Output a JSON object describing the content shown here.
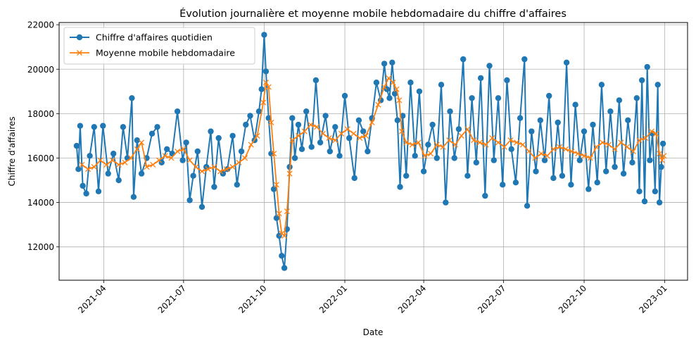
{
  "chart_data": {
    "type": "line",
    "title": "Évolution journalière et moyenne mobile hebdomadaire du chiffre d'affaires",
    "xlabel": "Date",
    "ylabel": "Chiffre d'affaires",
    "xlim": [
      "2021-02-09",
      "2023-01-27"
    ],
    "ylim": [
      10500,
      22100
    ],
    "x_ticks": [
      "2021-04",
      "2021-07",
      "2021-10",
      "2022-01",
      "2022-04",
      "2022-07",
      "2022-10",
      "2023-01"
    ],
    "y_ticks": [
      12000,
      14000,
      16000,
      18000,
      20000,
      22000
    ],
    "grid": true,
    "legend_position": "top-left",
    "series": [
      {
        "name": "Chiffre d'affaires quotidien",
        "color": "#1f77b4",
        "marker": "circle",
        "anchors": [
          [
            "2021-03-01",
            16550
          ],
          [
            "2021-03-03",
            15500
          ],
          [
            "2021-03-05",
            17450
          ],
          [
            "2021-03-08",
            14750
          ],
          [
            "2021-03-12",
            14400
          ],
          [
            "2021-03-16",
            16100
          ],
          [
            "2021-03-21",
            17400
          ],
          [
            "2021-03-26",
            14500
          ],
          [
            "2021-03-31",
            17450
          ],
          [
            "2021-04-06",
            15300
          ],
          [
            "2021-04-12",
            16200
          ],
          [
            "2021-04-18",
            15000
          ],
          [
            "2021-04-23",
            17400
          ],
          [
            "2021-04-28",
            16000
          ],
          [
            "2021-05-03",
            18700
          ],
          [
            "2021-05-05",
            14250
          ],
          [
            "2021-05-09",
            16800
          ],
          [
            "2021-05-14",
            15300
          ],
          [
            "2021-05-20",
            16000
          ],
          [
            "2021-05-26",
            17100
          ],
          [
            "2021-06-01",
            17400
          ],
          [
            "2021-06-06",
            15800
          ],
          [
            "2021-06-12",
            16400
          ],
          [
            "2021-06-18",
            16200
          ],
          [
            "2021-06-24",
            18100
          ],
          [
            "2021-06-30",
            15900
          ],
          [
            "2021-07-04",
            16700
          ],
          [
            "2021-07-08",
            14100
          ],
          [
            "2021-07-12",
            15200
          ],
          [
            "2021-07-17",
            16300
          ],
          [
            "2021-07-22",
            13800
          ],
          [
            "2021-07-27",
            15600
          ],
          [
            "2021-08-01",
            17200
          ],
          [
            "2021-08-05",
            14700
          ],
          [
            "2021-08-10",
            16900
          ],
          [
            "2021-08-15",
            15300
          ],
          [
            "2021-08-20",
            15500
          ],
          [
            "2021-08-26",
            17000
          ],
          [
            "2021-08-31",
            14800
          ],
          [
            "2021-09-05",
            16300
          ],
          [
            "2021-09-10",
            17500
          ],
          [
            "2021-09-15",
            17900
          ],
          [
            "2021-09-20",
            16800
          ],
          [
            "2021-09-25",
            18100
          ],
          [
            "2021-09-28",
            19100
          ],
          [
            "2021-10-01",
            21550
          ],
          [
            "2021-10-03",
            19900
          ],
          [
            "2021-10-06",
            17800
          ],
          [
            "2021-10-09",
            16200
          ],
          [
            "2021-10-12",
            14600
          ],
          [
            "2021-10-15",
            13300
          ],
          [
            "2021-10-18",
            12500
          ],
          [
            "2021-10-21",
            11600
          ],
          [
            "2021-10-24",
            11050
          ],
          [
            "2021-10-27",
            12800
          ],
          [
            "2021-10-30",
            15600
          ],
          [
            "2021-11-02",
            17800
          ],
          [
            "2021-11-05",
            16000
          ],
          [
            "2021-11-09",
            17500
          ],
          [
            "2021-11-13",
            16400
          ],
          [
            "2021-11-18",
            18100
          ],
          [
            "2021-11-24",
            16500
          ],
          [
            "2021-11-29",
            19500
          ],
          [
            "2021-12-04",
            16700
          ],
          [
            "2021-12-10",
            17900
          ],
          [
            "2021-12-15",
            16300
          ],
          [
            "2021-12-21",
            17400
          ],
          [
            "2021-12-26",
            16100
          ],
          [
            "2022-01-01",
            18800
          ],
          [
            "2022-01-06",
            16900
          ],
          [
            "2022-01-12",
            15100
          ],
          [
            "2022-01-17",
            17700
          ],
          [
            "2022-01-22",
            17200
          ],
          [
            "2022-01-27",
            16300
          ],
          [
            "2022-02-01",
            17800
          ],
          [
            "2022-02-06",
            19400
          ],
          [
            "2022-02-11",
            18600
          ],
          [
            "2022-02-15",
            20250
          ],
          [
            "2022-02-18",
            19100
          ],
          [
            "2022-02-21",
            18700
          ],
          [
            "2022-02-24",
            20300
          ],
          [
            "2022-02-27",
            18900
          ],
          [
            "2022-03-02",
            17700
          ],
          [
            "2022-03-05",
            14700
          ],
          [
            "2022-03-08",
            17900
          ],
          [
            "2022-03-12",
            15200
          ],
          [
            "2022-03-17",
            19400
          ],
          [
            "2022-03-22",
            16100
          ],
          [
            "2022-03-27",
            19000
          ],
          [
            "2022-04-01",
            15400
          ],
          [
            "2022-04-06",
            16600
          ],
          [
            "2022-04-11",
            17500
          ],
          [
            "2022-04-16",
            16000
          ],
          [
            "2022-04-21",
            19300
          ],
          [
            "2022-04-26",
            14000
          ],
          [
            "2022-05-01",
            18100
          ],
          [
            "2022-05-06",
            16000
          ],
          [
            "2022-05-11",
            17300
          ],
          [
            "2022-05-16",
            20450
          ],
          [
            "2022-05-21",
            15200
          ],
          [
            "2022-05-26",
            18700
          ],
          [
            "2022-05-31",
            15800
          ],
          [
            "2022-06-05",
            19600
          ],
          [
            "2022-06-10",
            14300
          ],
          [
            "2022-06-15",
            20150
          ],
          [
            "2022-06-20",
            15900
          ],
          [
            "2022-06-25",
            18700
          ],
          [
            "2022-06-30",
            14800
          ],
          [
            "2022-07-05",
            19500
          ],
          [
            "2022-07-10",
            16400
          ],
          [
            "2022-07-15",
            14900
          ],
          [
            "2022-07-20",
            17800
          ],
          [
            "2022-07-25",
            20450
          ],
          [
            "2022-07-28",
            13850
          ],
          [
            "2022-08-02",
            17200
          ],
          [
            "2022-08-07",
            15400
          ],
          [
            "2022-08-12",
            17700
          ],
          [
            "2022-08-17",
            15900
          ],
          [
            "2022-08-22",
            18800
          ],
          [
            "2022-08-27",
            15100
          ],
          [
            "2022-09-01",
            17600
          ],
          [
            "2022-09-06",
            15200
          ],
          [
            "2022-09-11",
            20300
          ],
          [
            "2022-09-16",
            14800
          ],
          [
            "2022-09-21",
            18400
          ],
          [
            "2022-09-26",
            15900
          ],
          [
            "2022-10-01",
            17200
          ],
          [
            "2022-10-06",
            14600
          ],
          [
            "2022-10-11",
            17500
          ],
          [
            "2022-10-16",
            14900
          ],
          [
            "2022-10-21",
            19300
          ],
          [
            "2022-10-26",
            15400
          ],
          [
            "2022-10-31",
            18100
          ],
          [
            "2022-11-05",
            15600
          ],
          [
            "2022-11-10",
            18600
          ],
          [
            "2022-11-15",
            15300
          ],
          [
            "2022-11-20",
            17700
          ],
          [
            "2022-11-25",
            15800
          ],
          [
            "2022-11-30",
            18700
          ],
          [
            "2022-12-03",
            14500
          ],
          [
            "2022-12-06",
            19500
          ],
          [
            "2022-12-09",
            14050
          ],
          [
            "2022-12-12",
            20100
          ],
          [
            "2022-12-15",
            15900
          ],
          [
            "2022-12-18",
            17100
          ],
          [
            "2022-12-21",
            14500
          ],
          [
            "2022-12-24",
            19300
          ],
          [
            "2022-12-26",
            14000
          ],
          [
            "2022-12-28",
            15600
          ],
          [
            "2022-12-30",
            16650
          ]
        ]
      },
      {
        "name": "Moyenne mobile hebdomadaire",
        "color": "#ff7f0e",
        "marker": "x",
        "anchors": [
          [
            "2021-03-07",
            15700
          ],
          [
            "2021-03-14",
            15500
          ],
          [
            "2021-03-21",
            15600
          ],
          [
            "2021-03-28",
            15900
          ],
          [
            "2021-04-04",
            15700
          ],
          [
            "2021-04-11",
            15900
          ],
          [
            "2021-04-18",
            15700
          ],
          [
            "2021-04-25",
            15800
          ],
          [
            "2021-05-02",
            16000
          ],
          [
            "2021-05-09",
            16400
          ],
          [
            "2021-05-14",
            16700
          ],
          [
            "2021-05-20",
            15600
          ],
          [
            "2021-05-27",
            15700
          ],
          [
            "2021-06-03",
            15900
          ],
          [
            "2021-06-10",
            16100
          ],
          [
            "2021-06-17",
            16000
          ],
          [
            "2021-06-24",
            16300
          ],
          [
            "2021-07-01",
            16400
          ],
          [
            "2021-07-08",
            15900
          ],
          [
            "2021-07-15",
            15600
          ],
          [
            "2021-07-22",
            15400
          ],
          [
            "2021-07-29",
            15500
          ],
          [
            "2021-08-05",
            15600
          ],
          [
            "2021-08-12",
            15400
          ],
          [
            "2021-08-19",
            15500
          ],
          [
            "2021-08-26",
            15600
          ],
          [
            "2021-09-02",
            15800
          ],
          [
            "2021-09-09",
            16000
          ],
          [
            "2021-09-16",
            16600
          ],
          [
            "2021-09-23",
            17000
          ],
          [
            "2021-09-30",
            18500
          ],
          [
            "2021-10-03",
            19400
          ],
          [
            "2021-10-06",
            19200
          ],
          [
            "2021-10-09",
            17600
          ],
          [
            "2021-10-12",
            16200
          ],
          [
            "2021-10-15",
            14800
          ],
          [
            "2021-10-18",
            13500
          ],
          [
            "2021-10-21",
            12600
          ],
          [
            "2021-10-24",
            12500
          ],
          [
            "2021-10-27",
            13600
          ],
          [
            "2021-10-30",
            15300
          ],
          [
            "2021-11-02",
            16800
          ],
          [
            "2021-11-09",
            17000
          ],
          [
            "2021-11-16",
            17200
          ],
          [
            "2021-11-23",
            17500
          ],
          [
            "2021-11-30",
            17400
          ],
          [
            "2021-12-07",
            17100
          ],
          [
            "2021-12-14",
            16900
          ],
          [
            "2021-12-21",
            16800
          ],
          [
            "2021-12-28",
            17100
          ],
          [
            "2022-01-04",
            17300
          ],
          [
            "2022-01-11",
            17100
          ],
          [
            "2022-01-18",
            16900
          ],
          [
            "2022-01-25",
            17000
          ],
          [
            "2022-02-01",
            17600
          ],
          [
            "2022-02-08",
            18400
          ],
          [
            "2022-02-15",
            19200
          ],
          [
            "2022-02-20",
            19600
          ],
          [
            "2022-02-25",
            19400
          ],
          [
            "2022-03-01",
            19100
          ],
          [
            "2022-03-04",
            18600
          ],
          [
            "2022-03-07",
            17200
          ],
          [
            "2022-03-12",
            16700
          ],
          [
            "2022-03-19",
            16600
          ],
          [
            "2022-03-26",
            16700
          ],
          [
            "2022-04-02",
            16100
          ],
          [
            "2022-04-09",
            16200
          ],
          [
            "2022-04-16",
            16600
          ],
          [
            "2022-04-23",
            16500
          ],
          [
            "2022-04-30",
            16800
          ],
          [
            "2022-05-07",
            16600
          ],
          [
            "2022-05-14",
            17000
          ],
          [
            "2022-05-21",
            17300
          ],
          [
            "2022-05-28",
            16800
          ],
          [
            "2022-06-04",
            16700
          ],
          [
            "2022-06-11",
            16600
          ],
          [
            "2022-06-18",
            16900
          ],
          [
            "2022-06-25",
            16700
          ],
          [
            "2022-07-02",
            16500
          ],
          [
            "2022-07-09",
            16800
          ],
          [
            "2022-07-16",
            16700
          ],
          [
            "2022-07-23",
            16600
          ],
          [
            "2022-07-30",
            16300
          ],
          [
            "2022-08-06",
            16000
          ],
          [
            "2022-08-13",
            16200
          ],
          [
            "2022-08-20",
            16100
          ],
          [
            "2022-08-27",
            16400
          ],
          [
            "2022-09-03",
            16500
          ],
          [
            "2022-09-10",
            16400
          ],
          [
            "2022-09-17",
            16300
          ],
          [
            "2022-09-24",
            16200
          ],
          [
            "2022-10-01",
            16100
          ],
          [
            "2022-10-08",
            16000
          ],
          [
            "2022-10-15",
            16500
          ],
          [
            "2022-10-22",
            16700
          ],
          [
            "2022-10-29",
            16600
          ],
          [
            "2022-11-05",
            16400
          ],
          [
            "2022-11-12",
            16700
          ],
          [
            "2022-11-19",
            16500
          ],
          [
            "2022-11-26",
            16300
          ],
          [
            "2022-12-03",
            16800
          ],
          [
            "2022-12-10",
            16900
          ],
          [
            "2022-12-17",
            17200
          ],
          [
            "2022-12-22",
            17100
          ],
          [
            "2022-12-26",
            16200
          ],
          [
            "2022-12-29",
            15900
          ],
          [
            "2022-12-31",
            16100
          ]
        ]
      }
    ]
  }
}
